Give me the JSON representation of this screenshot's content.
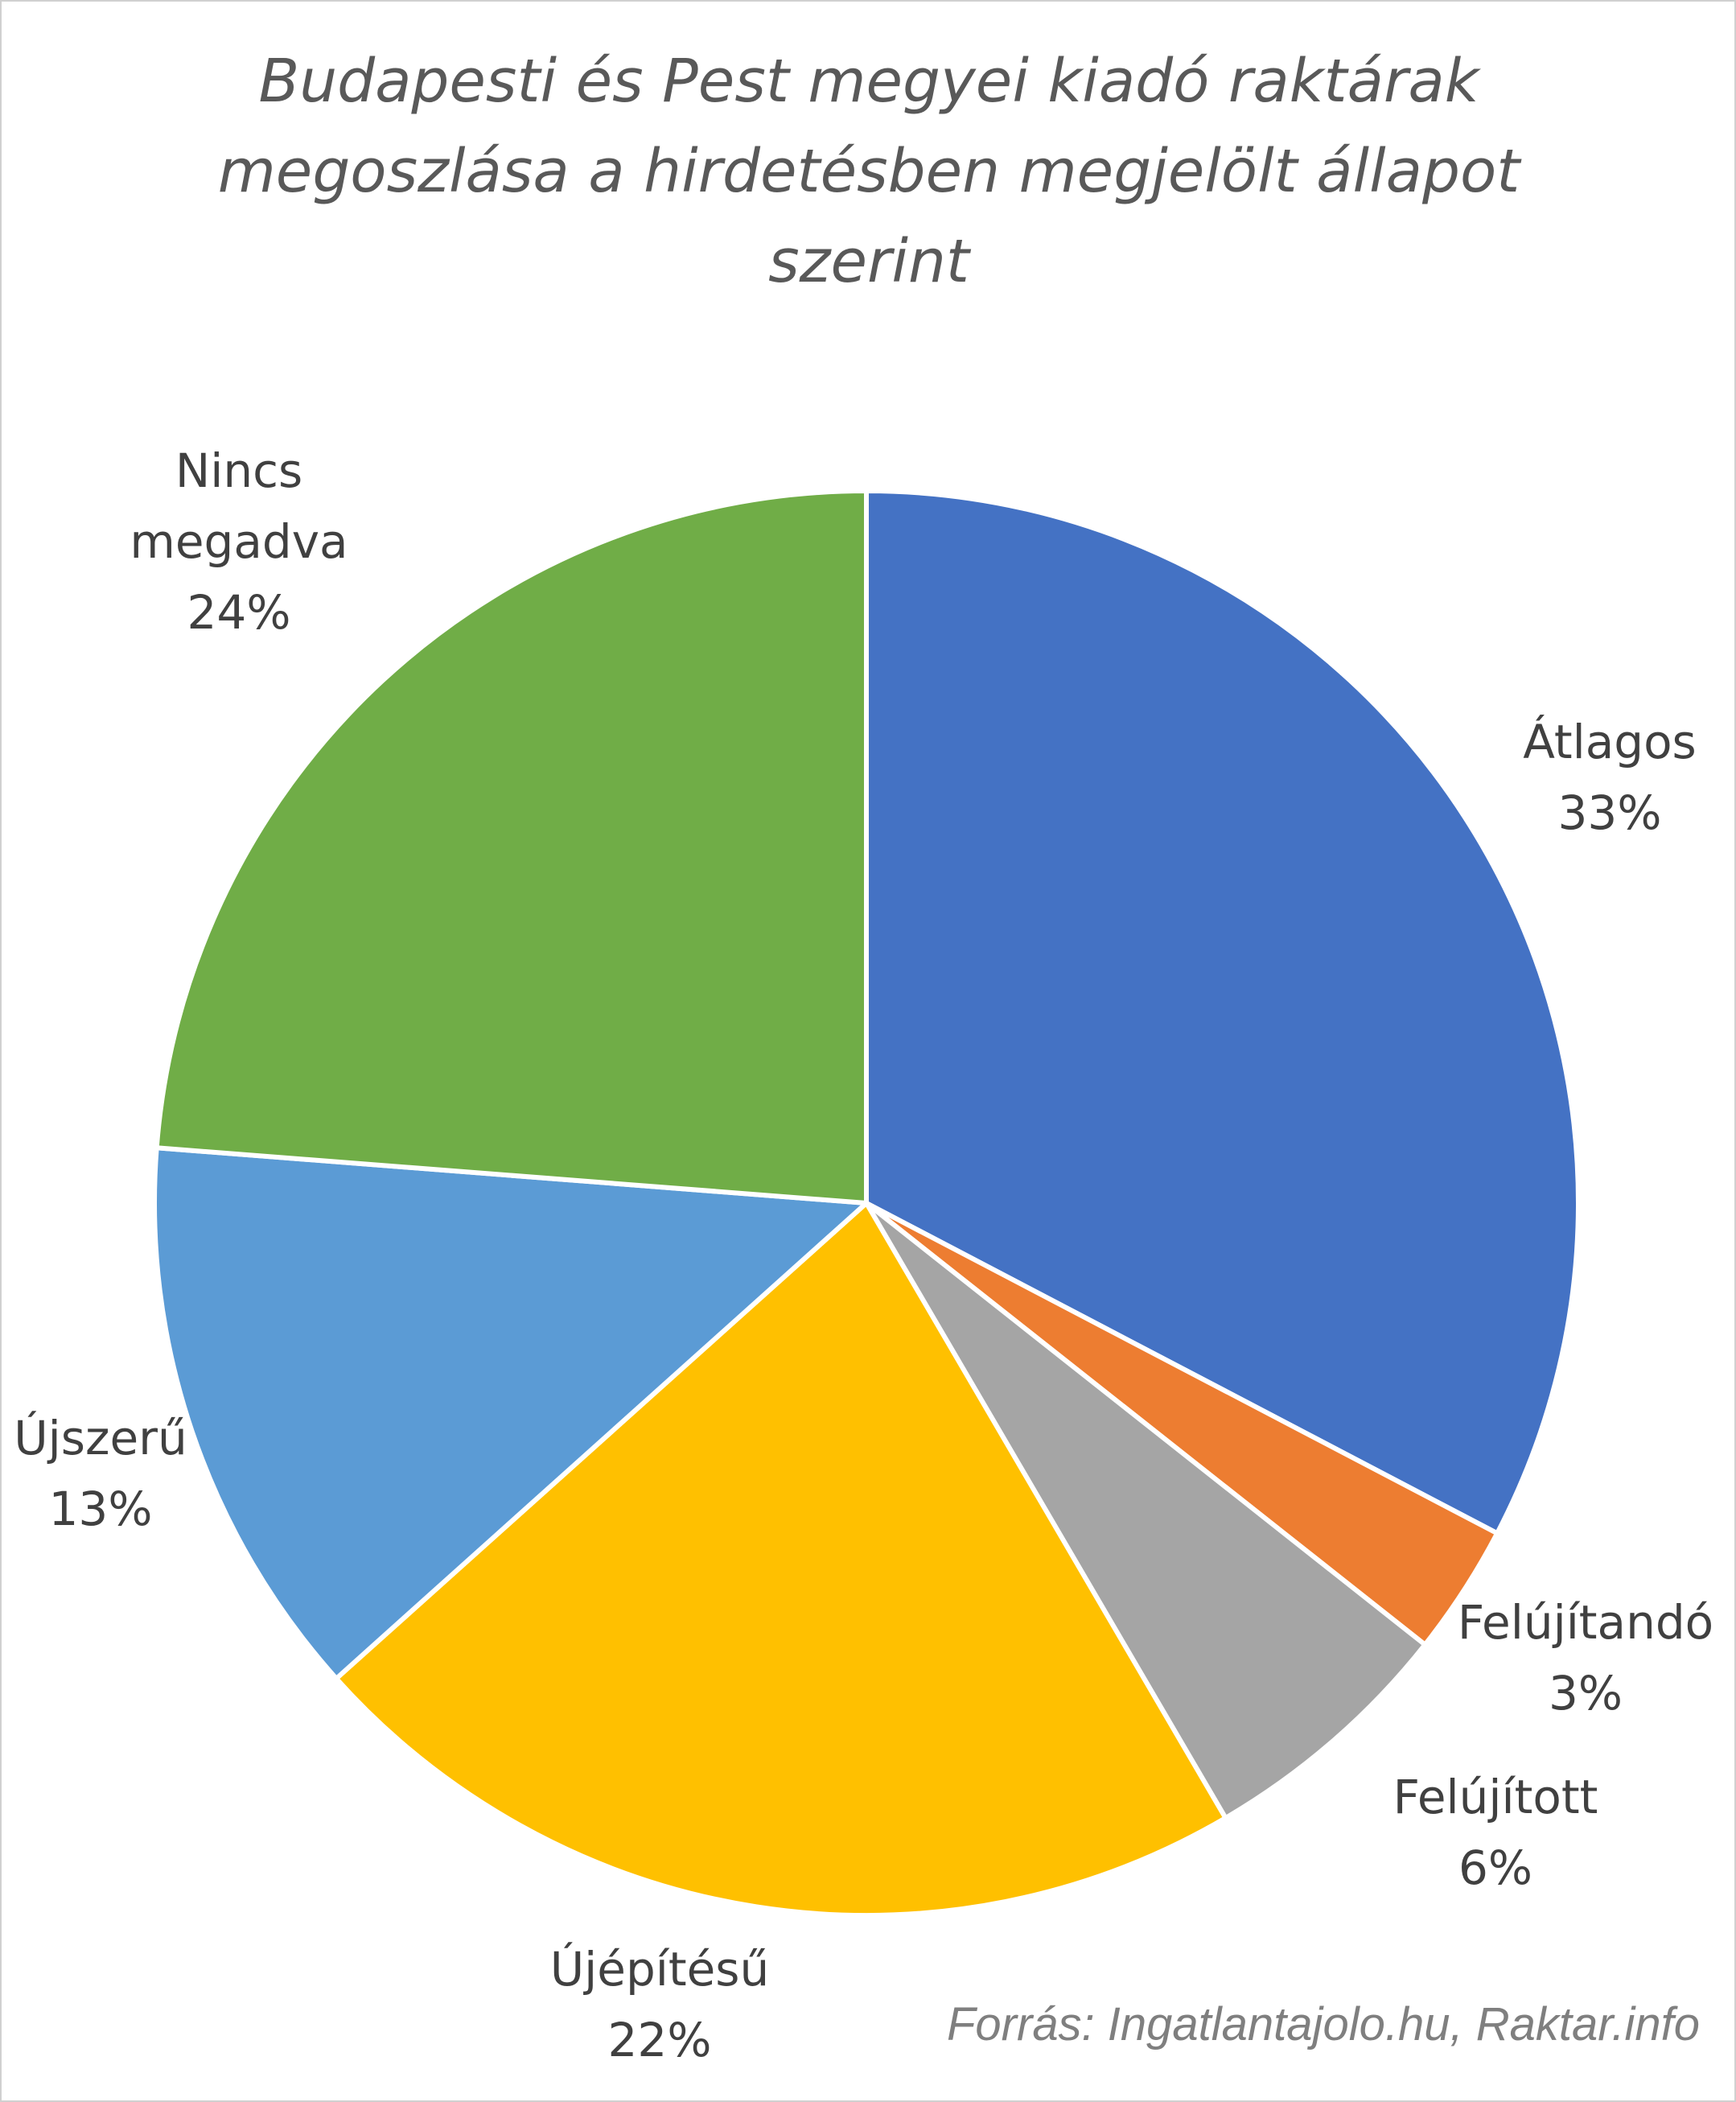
{
  "chart_data": {
    "type": "pie",
    "title": "Budapesti és Pest megyei kiadó raktárak megoszlása a hirdetésben megjelölt állapot szerint",
    "categories": [
      "Átlagos",
      "Felújítandó",
      "Felújított",
      "Újépítésű",
      "Újszerű",
      "Nincs megadva"
    ],
    "values": [
      33,
      3,
      6,
      22,
      13,
      24
    ],
    "value_labels": [
      "33%",
      "3%",
      "6%",
      "22%",
      "13%",
      "24%"
    ],
    "colors": [
      "#4472c4",
      "#ed7d31",
      "#a5a5a5",
      "#ffc000",
      "#5b9bd5",
      "#70ad47"
    ],
    "source": "Forrás: Ingatlantajolo.hu, Raktar.info"
  }
}
